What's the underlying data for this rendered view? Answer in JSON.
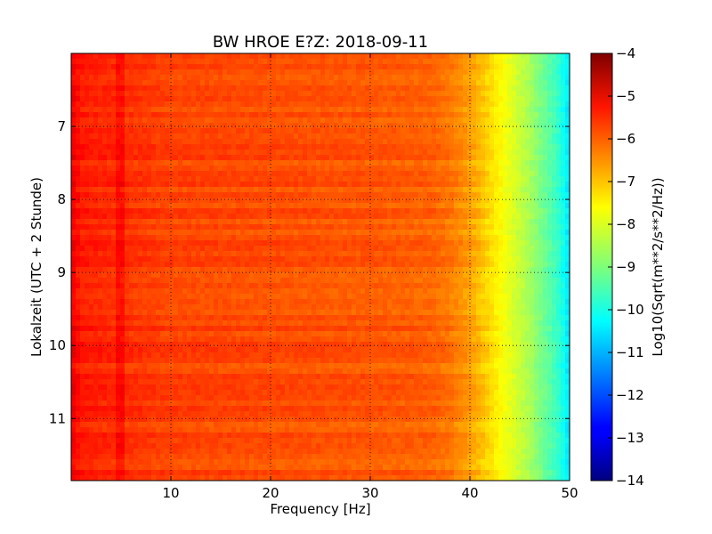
{
  "chart_data": {
    "type": "heatmap",
    "title": "BW HROE E?Z: 2018-09-11",
    "xlabel": "Frequency [Hz]",
    "ylabel": "Lokalzeit (UTC + 2 Stunde)",
    "colorbar_label": "Log10(Sqrt(m**2/s**2/Hz))",
    "colormap": "jet",
    "grid": true,
    "xlim": [
      0,
      50
    ],
    "ylim": [
      11.85,
      6.0
    ],
    "clim": [
      -14,
      -4
    ],
    "x_ticks": [
      10,
      20,
      30,
      40,
      50
    ],
    "x_tick_labels": [
      "10",
      "20",
      "30",
      "40",
      "50"
    ],
    "y_ticks": [
      7,
      8,
      9,
      10,
      11
    ],
    "y_tick_labels": [
      "7",
      "8",
      "9",
      "10",
      "11"
    ],
    "cbar_ticks": [
      -4,
      -5,
      -6,
      -7,
      -8,
      -9,
      -10,
      -11,
      -12,
      -13,
      -14
    ],
    "cbar_tick_labels": [
      "−4",
      "−5",
      "−6",
      "−7",
      "−8",
      "−9",
      "−10",
      "−11",
      "−12",
      "−13",
      "−14"
    ],
    "profile": {
      "frequency_hz": [
        0,
        1,
        5,
        10,
        20,
        30,
        36,
        38,
        40,
        41,
        42,
        43,
        44,
        45,
        46,
        47,
        48,
        49,
        49.5,
        50
      ],
      "log10_amplitude": [
        -5.1,
        -5.5,
        -5.7,
        -5.9,
        -6.0,
        -6.1,
        -6.2,
        -6.4,
        -6.8,
        -7.1,
        -7.4,
        -7.7,
        -8.0,
        -8.3,
        -8.6,
        -9.0,
        -9.4,
        -9.8,
        -10.2,
        -10.5
      ]
    }
  }
}
